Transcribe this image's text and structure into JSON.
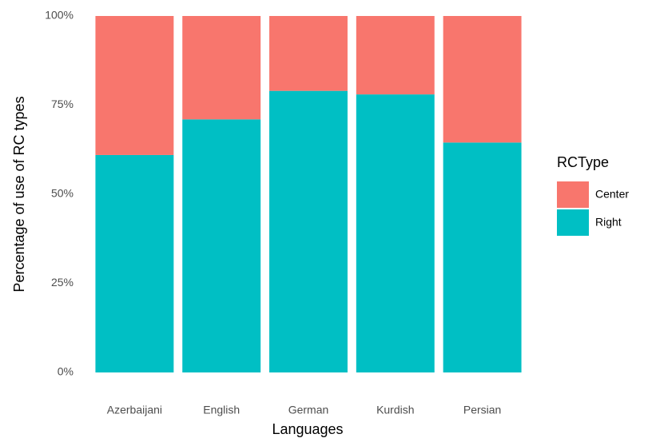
{
  "chart_data": {
    "type": "stacked_bar",
    "x_label": "Languages",
    "y_label": "Percentage of use of RC types",
    "legend_title": "RCType",
    "legend_position": "right",
    "grid": false,
    "categories": [
      "Azerbaijani",
      "English",
      "German",
      "Kurdish",
      "Persian"
    ],
    "series": [
      {
        "name": "Center",
        "color": "#f8766d",
        "values": [
          39,
          29,
          21,
          22,
          35.5
        ]
      },
      {
        "name": "Right",
        "color": "#00bfc4",
        "values": [
          61,
          71,
          79,
          78,
          64.5
        ]
      }
    ],
    "stack_order": "bottom-last-series",
    "ylim": [
      0,
      100
    ],
    "yticks": [
      {
        "value": 0,
        "label": "0%"
      },
      {
        "value": 25,
        "label": "25%"
      },
      {
        "value": 50,
        "label": "50%"
      },
      {
        "value": 75,
        "label": "75%"
      },
      {
        "value": 100,
        "label": "100%"
      }
    ]
  }
}
